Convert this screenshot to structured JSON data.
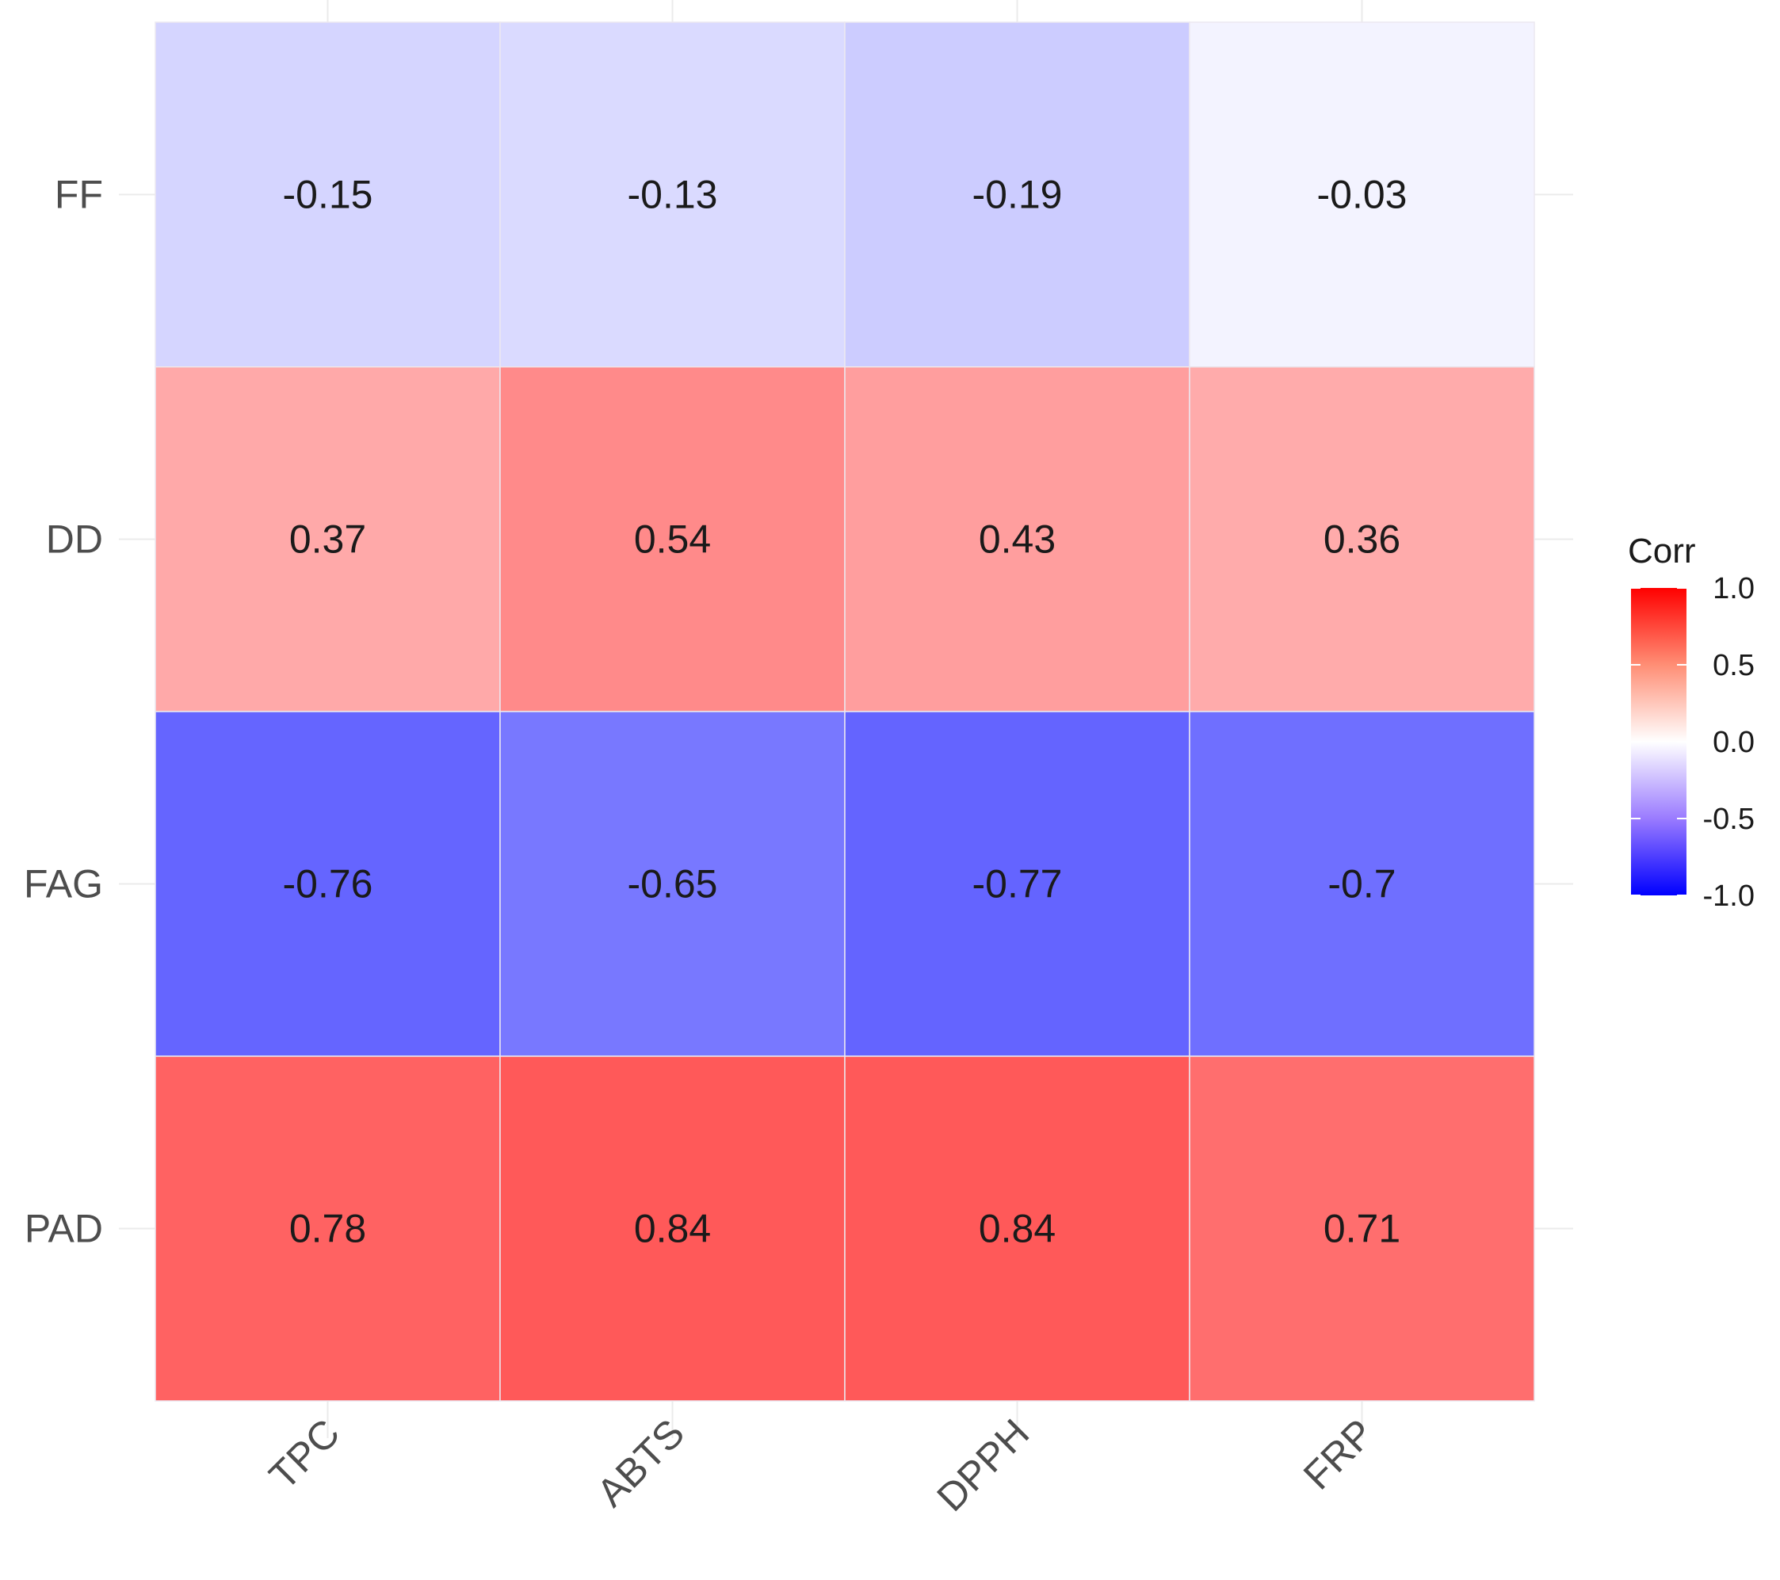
{
  "chart_data": {
    "type": "heatmap",
    "x_categories": [
      "TPC",
      "ABTS",
      "DPPH",
      "FRP"
    ],
    "y_categories": [
      "FF",
      "DD",
      "FAG",
      "PAD"
    ],
    "values": [
      [
        -0.15,
        -0.13,
        -0.19,
        -0.03
      ],
      [
        0.37,
        0.54,
        0.43,
        0.36
      ],
      [
        -0.76,
        -0.65,
        -0.77,
        -0.7
      ],
      [
        0.78,
        0.84,
        0.84,
        0.71
      ]
    ],
    "labels": [
      [
        "-0.15",
        "-0.13",
        "-0.19",
        "-0.03"
      ],
      [
        "0.37",
        "0.54",
        "0.43",
        "0.36"
      ],
      [
        "-0.76",
        "-0.65",
        "-0.77",
        "-0.7"
      ],
      [
        "0.78",
        "0.84",
        "0.84",
        "0.71"
      ]
    ],
    "legend": {
      "title": "Corr",
      "ticks": [
        "1.0",
        "0.5",
        "0.0",
        "-0.5",
        "-1.0"
      ],
      "tick_values": [
        1.0,
        0.5,
        0.0,
        -0.5,
        -1.0
      ],
      "range": [
        -1.0,
        1.0
      ],
      "position": "right"
    },
    "colors": {
      "low": "#0000ff",
      "mid": "#ffffff",
      "high": "#ff0000"
    },
    "grid": true
  }
}
